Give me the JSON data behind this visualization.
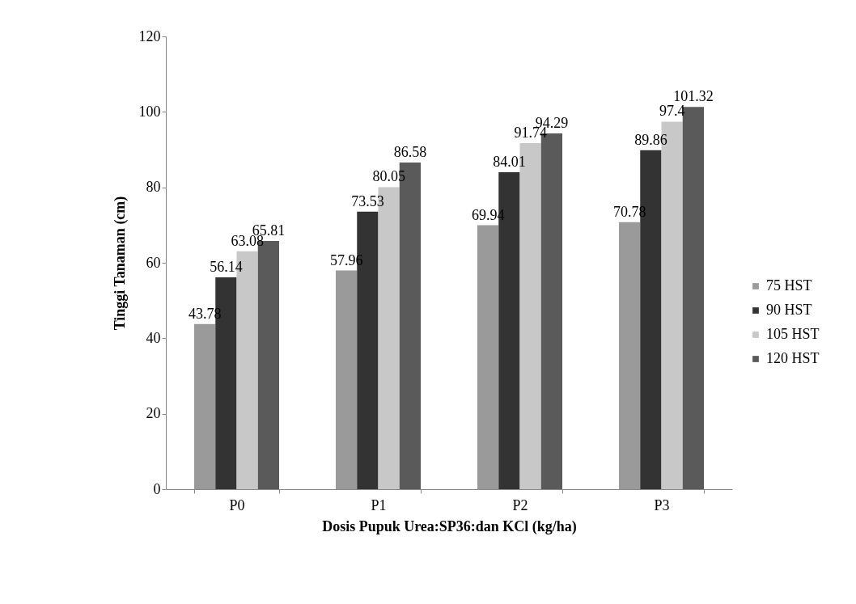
{
  "chart_data": {
    "type": "bar",
    "xlabel": "Dosis Pupuk Urea:SP36:dan KCl (kg/ha)",
    "ylabel": "Tinggi Tanaman (cm)",
    "categories": [
      "P0",
      "P1",
      "P2",
      "P3"
    ],
    "series": [
      {
        "name": "75 HST",
        "color": "#9a9a9a",
        "values": [
          43.78,
          57.96,
          69.94,
          70.78
        ]
      },
      {
        "name": "90 HST",
        "color": "#333333",
        "values": [
          56.14,
          73.53,
          84.01,
          89.86
        ]
      },
      {
        "name": "105 HST",
        "color": "#c8c8c8",
        "values": [
          63.08,
          80.05,
          91.74,
          97.4
        ]
      },
      {
        "name": "120 HST",
        "color": "#5a5a5a",
        "values": [
          65.81,
          86.58,
          94.29,
          101.32
        ]
      }
    ],
    "ylim": [
      0,
      120
    ],
    "yticks": [
      0,
      20,
      40,
      60,
      80,
      100,
      120
    ],
    "data_labels": true,
    "legend": "right",
    "grid": false
  }
}
